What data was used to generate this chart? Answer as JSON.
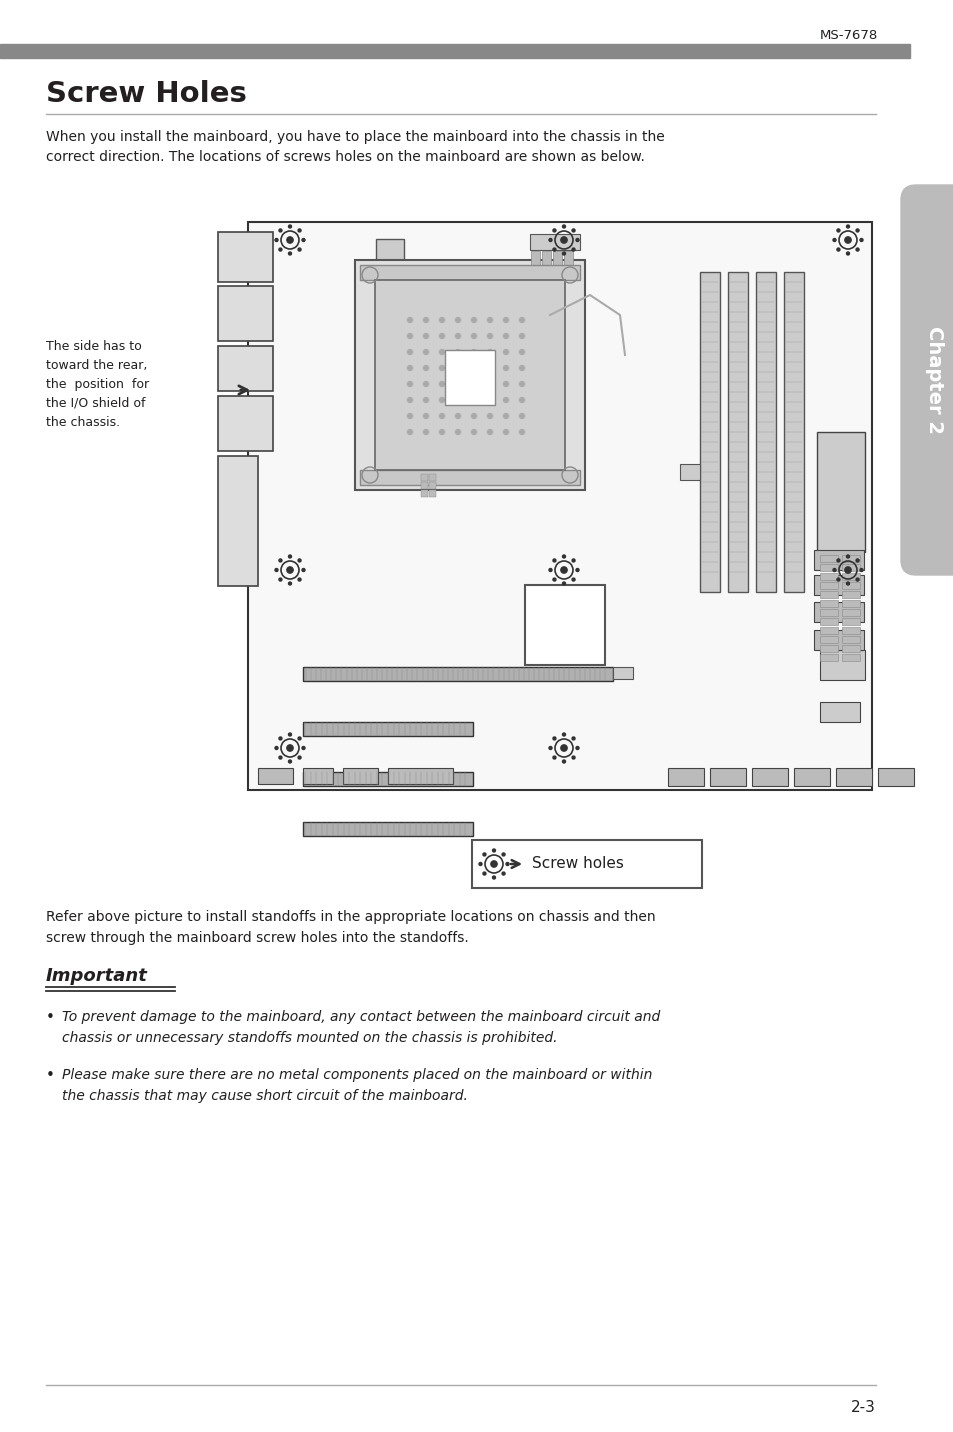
{
  "page_title": "MS-7678",
  "header_bar_color": "#888888",
  "section_title": "Screw Holes",
  "section_line_color": "#aaaaaa",
  "intro_text": "When you install the mainboard, you have to place the mainboard into the chassis in the\ncorrect direction. The locations of screws holes on the mainboard are shown as below.",
  "side_note": "The side has to\ntoward the rear,\nthe  position  for\nthe I/O shield of\nthe chassis.",
  "refer_text": "Refer above picture to install standoffs in the appropriate locations on chassis and then\nscrew through the mainboard screw holes into the standoffs.",
  "important_label": "Important",
  "bullet1": "To prevent damage to the mainboard, any contact between the mainboard circuit and\nchassis or unnecessary standoffs mounted on the chassis is prohibited.",
  "bullet2": "Please make sure there are no metal components placed on the mainboard or within\nthe chassis that may cause short circuit of the mainboard.",
  "legend_text": "Screw holes",
  "chapter_label": "Chapter 2",
  "page_number": "2-3",
  "bg_color": "#ffffff",
  "text_color": "#231f20",
  "gray_color": "#888888",
  "right_tab_color": "#bbbbbb",
  "board_edge": "#333333",
  "board_fill": "#f8f8f8"
}
